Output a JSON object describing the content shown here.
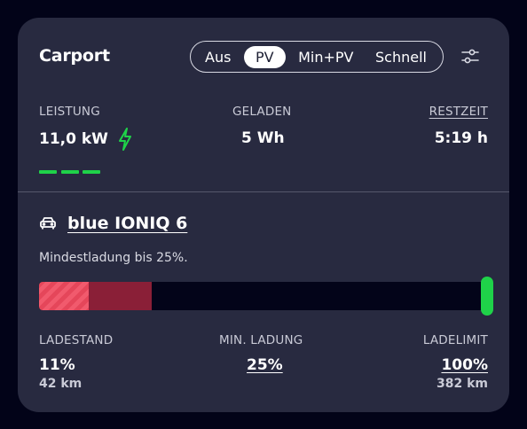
{
  "title": "Carport",
  "modes": [
    "Aus",
    "PV",
    "Min+PV",
    "Schnell"
  ],
  "active_mode": "PV",
  "stats": {
    "power": {
      "label": "LEISTUNG",
      "value": "11,0 kW"
    },
    "charged": {
      "label": "GELADEN",
      "value": "5 Wh"
    },
    "remaining": {
      "label": "RESTZEIT",
      "value": "5:19 h"
    }
  },
  "vehicle": {
    "name": "blue IONIQ 6"
  },
  "hint": "Mindestladung bis 25%.",
  "soc": {
    "label": "LADESTAND",
    "value": "11%",
    "range": "42 km",
    "fraction": 0.11
  },
  "min_charge": {
    "label": "MIN. LADUNG",
    "value": "25%",
    "fraction": 0.25
  },
  "limit": {
    "label": "LADELIMIT",
    "value": "100%",
    "range": "382 km",
    "fraction": 1.0
  },
  "colors": {
    "background": "#020318",
    "card": "#282a40",
    "accent_green": "#1fd249",
    "soc_red": "#e5465a",
    "min_red": "#8a1f37"
  },
  "icons": {
    "settings": "sliders-icon",
    "power": "lightning-icon",
    "vehicle": "car-icon"
  }
}
